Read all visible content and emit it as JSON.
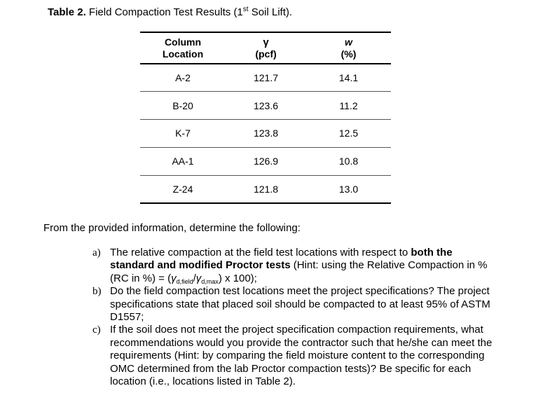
{
  "caption": {
    "label": "Table 2.",
    "title_pre": "Field Compaction Test Results (1",
    "title_sup": "st",
    "title_post": " Soil Lift)."
  },
  "table": {
    "headers": {
      "col1_line1": "Column",
      "col1_line2": "Location",
      "col2_symbol": "γ",
      "col2_unit": "(pcf)",
      "col3_symbol": "w",
      "col3_unit": "(%)"
    },
    "rows": [
      {
        "location": "A-2",
        "gamma": "121.7",
        "w": "14.1"
      },
      {
        "location": "B-20",
        "gamma": "123.6",
        "w": "11.2"
      },
      {
        "location": "K-7",
        "gamma": "123.8",
        "w": "12.5"
      },
      {
        "location": "AA-1",
        "gamma": "126.9",
        "w": "10.8"
      },
      {
        "location": "Z-24",
        "gamma": "121.8",
        "w": "13.0"
      }
    ]
  },
  "intro": "From the provided information, determine the following:",
  "questions": {
    "a": {
      "marker": "a)",
      "text1": "The relative compaction at the field test locations with respect to ",
      "bold": "both the standard and modified Proctor tests",
      "text2": " (Hint: using the Relative Compaction in % (RC in %) = (",
      "g1": "γ",
      "sub1": "d,field",
      "slash": "/",
      "g2": "γ",
      "sub2": "d,max",
      "text3": ") x 100);"
    },
    "b": {
      "marker": "b)",
      "text": "Do the field compaction test locations meet the project specifications? The project specifications state that placed soil should be compacted to at least 95% of ASTM D1557;"
    },
    "c": {
      "marker": "c)",
      "text": "If the soil does not meet the project specification compaction requirements, what recommendations would you provide the contractor such that he/she can meet the requirements (Hint: by comparing the field moisture content to the corresponding OMC determined from the lab Proctor compaction tests)? Be specific for each location (i.e., locations listed in Table 2)."
    }
  }
}
